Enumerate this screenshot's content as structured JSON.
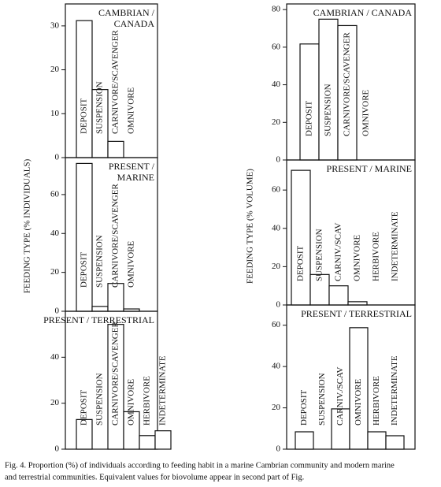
{
  "chart_data": [
    {
      "type": "bar",
      "title": [
        "CAMBRIAN /",
        "CANADA"
      ],
      "ylabel": "FEEDING TYPE (% INDIVIDUALS)",
      "categories": [
        "DEPOSIT",
        "SUSPENSION",
        "CARNIVORE/SCAVENGER",
        "OMNIVORE"
      ],
      "values": [
        31.2,
        15.5,
        3.7,
        0
      ],
      "ylim": [
        0,
        35
      ],
      "yticks": [
        0,
        10,
        20,
        30
      ]
    },
    {
      "type": "bar",
      "title": [
        "PRESENT /",
        "MARINE"
      ],
      "categories": [
        "DEPOSIT",
        "SUSPENSION",
        "CARNIVORE/SCAVENGER",
        "OMNIVORE"
      ],
      "values": [
        76,
        2.5,
        14.3,
        1.2
      ],
      "ylim": [
        0,
        79
      ],
      "yticks": [
        0,
        20,
        40,
        60
      ]
    },
    {
      "type": "bar",
      "title": [
        "PRESENT / TERRESTRIAL"
      ],
      "categories": [
        "DEPOSIT",
        "SUSPENSION",
        "CARNIVORE/SCAVENGER",
        "OMNIVORE",
        "HERBIVORE",
        "INDETERMINATE"
      ],
      "values": [
        12.9,
        0,
        54.3,
        16.3,
        5.9,
        8
      ],
      "ylim": [
        0,
        60
      ],
      "yticks": [
        0,
        20,
        40
      ]
    },
    {
      "type": "bar",
      "title": [
        "CAMBRIAN / CANADA"
      ],
      "ylabel": "FEEDING TYPE (% VOLUME)",
      "categories": [
        "DEPOSIT",
        "SUSPENSION",
        "CARNIVORE/SCAVENGER",
        "OMNIVORE"
      ],
      "values": [
        61.7,
        74.9,
        71.5,
        0
      ],
      "ylim": [
        0,
        83
      ],
      "yticks": [
        0,
        20,
        40,
        60,
        80
      ]
    },
    {
      "type": "bar",
      "title": [
        "PRESENT / MARINE"
      ],
      "categories": [
        "DEPOSIT",
        "SUSPENSION",
        "CARNIV./SCAV",
        "OMNIVORE",
        "HERBIVORE",
        "INDETERMINATE"
      ],
      "values": [
        70.3,
        15.9,
        10,
        1.7,
        0,
        0
      ],
      "ylim": [
        0,
        75.7
      ],
      "yticks": [
        0,
        20,
        40,
        60
      ]
    },
    {
      "type": "bar",
      "title": [
        "PRESENT / TERRESTRIAL"
      ],
      "categories": [
        "DEPOSIT",
        "SUSPENSION",
        "CARNIV./SCAV",
        "OMNIVORE",
        "HERBIVORE",
        "INDETERMINATE"
      ],
      "values": [
        8.4,
        0,
        19.5,
        58.8,
        8.4,
        6.5
      ],
      "ylim": [
        0,
        69.8
      ],
      "yticks": [
        0,
        20,
        40,
        60
      ]
    }
  ],
  "caption": [
    "Fig. 4. Proportion (%) of individuals according to feeding habit in a marine Cambrian community and modern marine",
    "and terrestrial communities. Equivalent values for biovolume appear in second part of Fig."
  ]
}
